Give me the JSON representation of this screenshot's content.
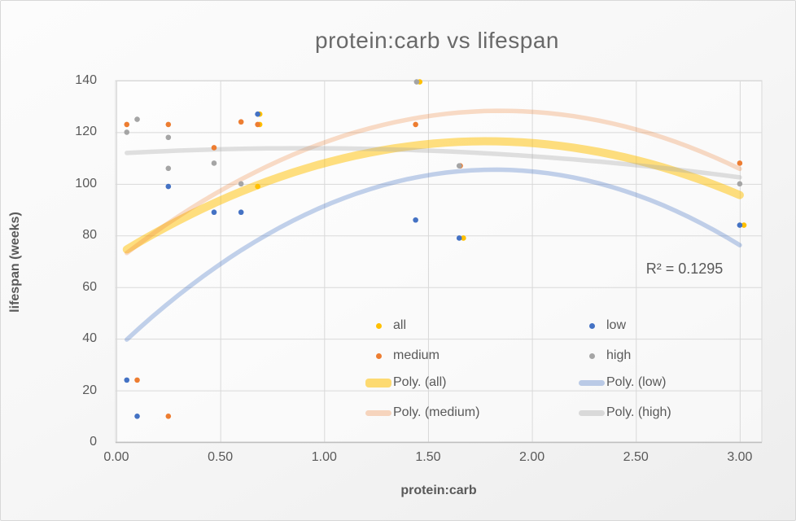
{
  "title": "protein:carb vs lifespan",
  "annotation": {
    "text": "R² = 0.1295"
  },
  "axes": {
    "x": {
      "title": "protein:carb",
      "tick_labels": [
        "0.00",
        "0.50",
        "1.00",
        "1.50",
        "2.00",
        "2.50",
        "3.00"
      ]
    },
    "y": {
      "title": "lifespan (weeks)",
      "tick_labels": [
        "0",
        "20",
        "40",
        "60",
        "80",
        "100",
        "120",
        "140"
      ]
    }
  },
  "legend": {
    "items": [
      {
        "label": "all",
        "swatch": "dot",
        "color": "#FFC000",
        "col": 0,
        "row": 0
      },
      {
        "label": "low",
        "swatch": "dot",
        "color": "#4472C4",
        "col": 1,
        "row": 0
      },
      {
        "label": "medium",
        "swatch": "dot",
        "color": "#ED7D31",
        "col": 0,
        "row": 1
      },
      {
        "label": "high",
        "swatch": "dot",
        "color": "#A5A5A5",
        "col": 1,
        "row": 1
      },
      {
        "label": "Poly. (all)",
        "swatch": "line-thick",
        "color": "rgba(255,192,0,0.55)",
        "col": 0,
        "row": 2
      },
      {
        "label": "Poly. (low)",
        "swatch": "line",
        "color": "rgba(68,114,196,0.35)",
        "col": 1,
        "row": 2
      },
      {
        "label": "Poly. (medium)",
        "swatch": "line",
        "color": "rgba(237,125,49,0.30)",
        "col": 0,
        "row": 3
      },
      {
        "label": "Poly. (high)",
        "swatch": "line",
        "color": "rgba(165,165,165,0.38)",
        "col": 1,
        "row": 3
      }
    ]
  },
  "chart_data": {
    "type": "scatter",
    "title": "protein:carb vs lifespan",
    "xlabel": "protein:carb",
    "ylabel": "lifespan (weeks)",
    "xlim": [
      0,
      3.11
    ],
    "ylim": [
      0,
      140
    ],
    "x_ticks": [
      0,
      0.5,
      1.0,
      1.5,
      2.0,
      2.5,
      3.0
    ],
    "y_ticks": [
      0,
      20,
      40,
      60,
      80,
      100,
      120,
      140
    ],
    "grid": true,
    "legend_position": "inside-bottom-center",
    "r_squared": 0.1295,
    "annotation": {
      "text": "R² = 0.1295",
      "x": 2.55,
      "y": 66
    },
    "series": [
      {
        "name": "all",
        "color": "#FFC000",
        "points": [
          [
            0.69,
            127
          ],
          [
            0.69,
            123
          ],
          [
            0.68,
            99
          ],
          [
            1.46,
            139.5
          ],
          [
            1.67,
            79
          ],
          [
            3.02,
            84
          ]
        ]
      },
      {
        "name": "low",
        "color": "#4472C4",
        "points": [
          [
            0.05,
            24
          ],
          [
            0.1,
            10
          ],
          [
            0.25,
            99
          ],
          [
            0.47,
            89
          ],
          [
            0.6,
            89
          ],
          [
            0.68,
            127
          ],
          [
            1.44,
            86
          ],
          [
            1.65,
            79
          ],
          [
            3.0,
            84
          ]
        ]
      },
      {
        "name": "medium",
        "color": "#ED7D31",
        "points": [
          [
            0.05,
            123
          ],
          [
            0.1,
            24
          ],
          [
            0.25,
            123
          ],
          [
            0.25,
            10
          ],
          [
            0.47,
            114
          ],
          [
            0.6,
            124
          ],
          [
            0.68,
            123
          ],
          [
            1.44,
            123
          ],
          [
            1.655,
            107
          ],
          [
            3.0,
            108
          ]
        ]
      },
      {
        "name": "high",
        "color": "#A5A5A5",
        "points": [
          [
            0.05,
            120
          ],
          [
            0.1,
            125
          ],
          [
            0.25,
            118
          ],
          [
            0.25,
            106
          ],
          [
            0.47,
            108
          ],
          [
            0.6,
            100
          ],
          [
            1.445,
            139.5
          ],
          [
            1.65,
            107
          ],
          [
            3.0,
            100
          ]
        ]
      }
    ],
    "trendlines": [
      {
        "name": "Poly. (all)",
        "series": "all",
        "order": 2,
        "color": "rgba(255,192,0,0.50)",
        "width": 10,
        "vertex_y": 116.5,
        "vertex_x": 1.78,
        "a": 14.0,
        "x_range": [
          0.05,
          3.0
        ]
      },
      {
        "name": "Poly. (low)",
        "series": "low",
        "order": 2,
        "color": "rgba(68,114,196,0.32)",
        "width": 5.5,
        "vertex_y": 105.5,
        "vertex_x": 1.82,
        "a": 21.0,
        "x_range": [
          0.05,
          3.0
        ]
      },
      {
        "name": "Poly. (medium)",
        "series": "medium",
        "order": 2,
        "color": "rgba(237,125,49,0.27)",
        "width": 5.5,
        "vertex_y": 128.3,
        "vertex_x": 1.85,
        "a": 17.0,
        "x_range": [
          0.05,
          3.0
        ]
      },
      {
        "name": "Poly. (high)",
        "series": "high",
        "order": 2,
        "color": "rgba(165,165,165,0.33)",
        "width": 5.5,
        "vertex_y": 113.8,
        "vertex_x": 0.9,
        "a": 2.56,
        "x_range": [
          0.05,
          3.0
        ]
      }
    ]
  }
}
